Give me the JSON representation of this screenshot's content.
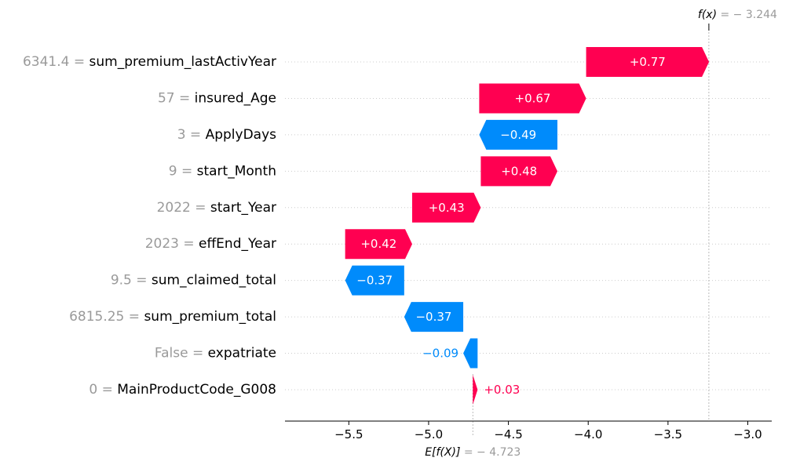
{
  "chart_data": {
    "type": "waterfall",
    "fx_label": "f(x)",
    "fx_value": "= − 3.244",
    "fx": -3.244,
    "base_label": "E[f(X)]",
    "base_text": "= − 4.723",
    "base_value": -4.723,
    "xlim": [
      -5.9,
      -2.85
    ],
    "xticks": [
      -5.5,
      -5.0,
      -4.5,
      -4.0,
      -3.5,
      -3.0
    ],
    "xtick_labels": [
      "−5.5",
      "−5.0",
      "−4.5",
      "−4.0",
      "−3.5",
      "−3.0"
    ],
    "colors": {
      "positive": "#ff0051",
      "negative": "#008bfb",
      "feature_value": "#9a9a9a"
    },
    "features": [
      {
        "value": "6341.4",
        "name": "sum_premium_lastActivYear",
        "contribution": 0.77,
        "label": "+0.77"
      },
      {
        "value": "57",
        "name": "insured_Age",
        "contribution": 0.67,
        "label": "+0.67"
      },
      {
        "value": "3",
        "name": "ApplyDays",
        "contribution": -0.49,
        "label": "−0.49"
      },
      {
        "value": "9",
        "name": "start_Month",
        "contribution": 0.48,
        "label": "+0.48"
      },
      {
        "value": "2022",
        "name": "start_Year",
        "contribution": 0.43,
        "label": "+0.43"
      },
      {
        "value": "2023",
        "name": "effEnd_Year",
        "contribution": 0.42,
        "label": "+0.42"
      },
      {
        "value": "9.5",
        "name": "sum_claimed_total",
        "contribution": -0.37,
        "label": "−0.37"
      },
      {
        "value": "6815.25",
        "name": "sum_premium_total",
        "contribution": -0.37,
        "label": "−0.37"
      },
      {
        "value": "False",
        "name": "expatriate",
        "contribution": -0.09,
        "label": "−0.09"
      },
      {
        "value": "0",
        "name": "MainProductCode_G008",
        "contribution": 0.03,
        "label": "+0.03"
      }
    ]
  }
}
